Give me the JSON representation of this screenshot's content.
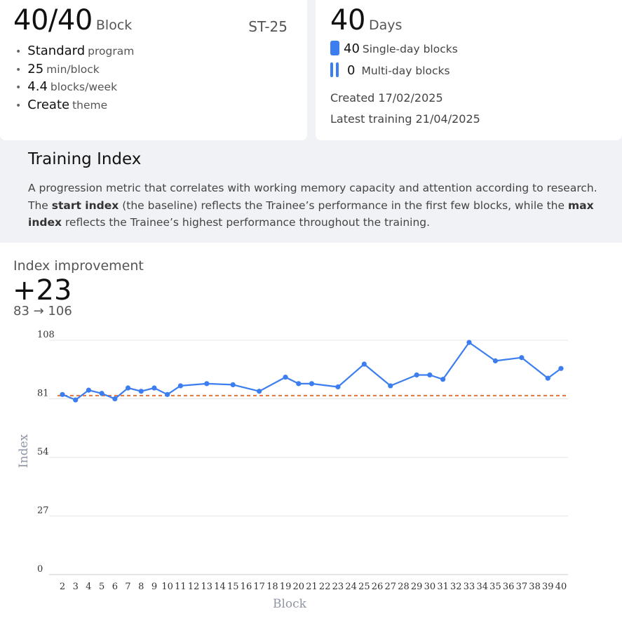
{
  "summary": {
    "blocks_done": "40",
    "blocks_total": "/40",
    "blocks_unit": "Block",
    "code": "ST-25",
    "items": [
      {
        "value": "Standard",
        "label": "program"
      },
      {
        "value": "25",
        "label": "min/block"
      },
      {
        "value": "4.4",
        "label": "blocks/week"
      },
      {
        "value": "Create",
        "label": "theme"
      }
    ]
  },
  "days": {
    "count": "40",
    "unit": "Days",
    "single_count": "40",
    "single_label": "Single-day blocks",
    "multi_count": "0",
    "multi_label": "Multi-day blocks",
    "created": "Created 17/02/2025",
    "latest": "Latest training 21/04/2025",
    "accent": "#3c7ef0"
  },
  "info": {
    "title": "Training Index",
    "p1": "A progression metric that correlates with working memory capacity and attention according to research. The ",
    "b1": "start index",
    "p2": " (the baseline) reflects the Trainee’s performance in the first few blocks, while the ",
    "b2": "max index",
    "p3": " reflects the Trainee’s highest performance throughout the training."
  },
  "improvement": {
    "label": "Index improvement",
    "value": "+23",
    "range": "83 → 106"
  },
  "chart_data": {
    "type": "line",
    "xlabel": "Block",
    "ylabel": "Index",
    "ylim": [
      0,
      108
    ],
    "yticks": [
      0,
      27,
      54,
      81,
      108
    ],
    "x": [
      2,
      3,
      4,
      5,
      6,
      7,
      8,
      9,
      10,
      11,
      12,
      13,
      14,
      15,
      16,
      17,
      18,
      19,
      20,
      21,
      22,
      23,
      24,
      25,
      26,
      27,
      28,
      29,
      30,
      31,
      32,
      33,
      34,
      35,
      36,
      37,
      38,
      39,
      40
    ],
    "points": [
      {
        "x": 2,
        "y": 83
      },
      {
        "x": 3,
        "y": 80.5
      },
      {
        "x": 4,
        "y": 85
      },
      {
        "x": 5,
        "y": 83.5
      },
      {
        "x": 6,
        "y": 81
      },
      {
        "x": 7,
        "y": 86
      },
      {
        "x": 8,
        "y": 84.5
      },
      {
        "x": 9,
        "y": 86
      },
      {
        "x": 10,
        "y": 83
      },
      {
        "x": 11,
        "y": 87
      },
      {
        "x": 13,
        "y": 88
      },
      {
        "x": 15,
        "y": 87.5
      },
      {
        "x": 17,
        "y": 84.5
      },
      {
        "x": 19,
        "y": 91
      },
      {
        "x": 20,
        "y": 88
      },
      {
        "x": 21,
        "y": 88
      },
      {
        "x": 23,
        "y": 86.5
      },
      {
        "x": 25,
        "y": 97
      },
      {
        "x": 27,
        "y": 87
      },
      {
        "x": 29,
        "y": 92
      },
      {
        "x": 30,
        "y": 92
      },
      {
        "x": 31,
        "y": 90
      },
      {
        "x": 33,
        "y": 107
      },
      {
        "x": 35,
        "y": 98.5
      },
      {
        "x": 37,
        "y": 100
      },
      {
        "x": 39,
        "y": 90.5
      },
      {
        "x": 40,
        "y": 95
      }
    ],
    "baseline": 82.5,
    "line_color": "#3c7ef0",
    "baseline_color": "#e0763c",
    "grid": true
  }
}
